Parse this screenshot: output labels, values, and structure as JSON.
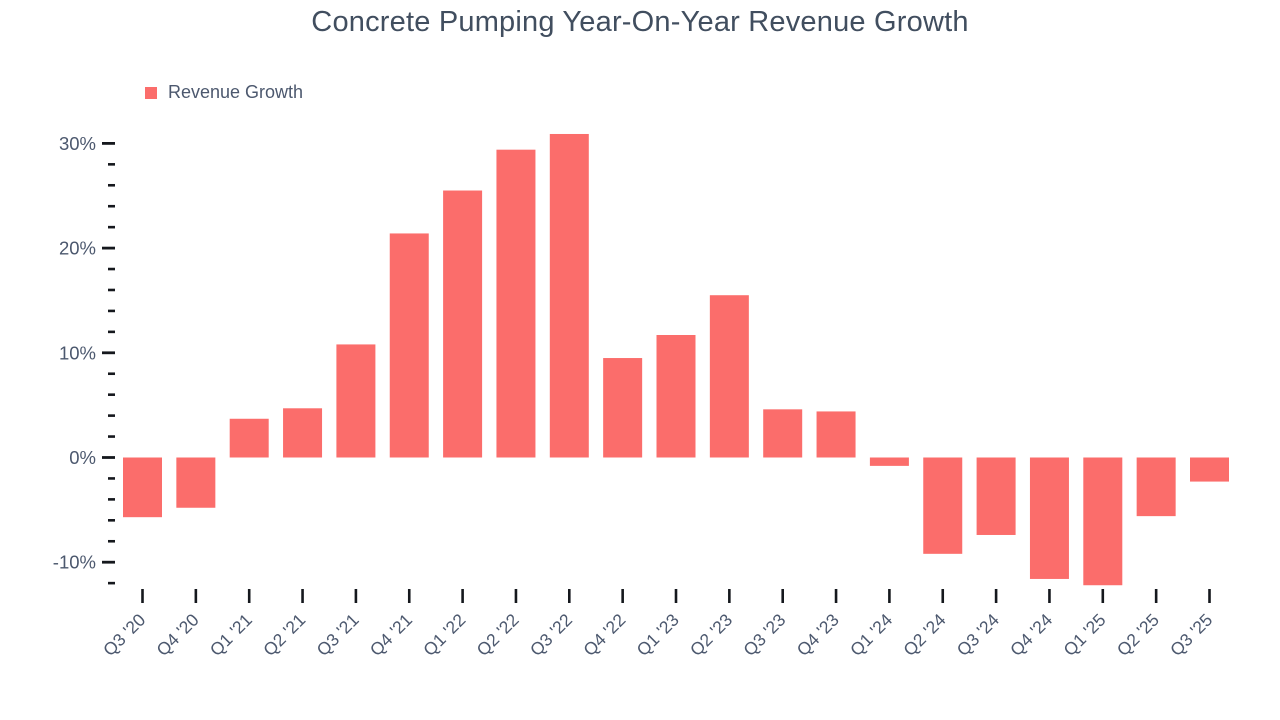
{
  "chart_data": {
    "type": "bar",
    "title": "Concrete Pumping Year-On-Year Revenue Growth",
    "legend_label": "Revenue Growth",
    "legend_position": "top-left",
    "categories": [
      "Q3 '20",
      "Q4 '20",
      "Q1 '21",
      "Q2 '21",
      "Q3 '21",
      "Q4 '21",
      "Q1 '22",
      "Q2 '22",
      "Q3 '22",
      "Q4 '22",
      "Q1 '23",
      "Q2 '23",
      "Q3 '23",
      "Q4 '23",
      "Q1 '24",
      "Q2 '24",
      "Q3 '24",
      "Q4 '24",
      "Q1 '25",
      "Q2 '25",
      "Q3 '25"
    ],
    "values": [
      -5.7,
      -4.8,
      3.7,
      4.7,
      10.8,
      21.4,
      25.5,
      29.4,
      30.9,
      9.5,
      11.7,
      15.5,
      4.6,
      4.4,
      -0.8,
      -9.2,
      -7.4,
      -11.6,
      -12.2,
      -5.6,
      -2.3
    ],
    "unit": "%",
    "ylabel": "",
    "xlabel": "",
    "ylim": [
      -13,
      31.5
    ],
    "yticks_major": [
      -10,
      0,
      10,
      20,
      30
    ],
    "ytick_minor_step": 2,
    "ytick_minor_range": [
      -12,
      28
    ],
    "grid": false,
    "colors": {
      "bar": "#FB6D6B",
      "title_text": "#414e5f",
      "axis_text": "#4c586e",
      "tick_mark": "#15181d",
      "background": "#ffffff"
    }
  }
}
